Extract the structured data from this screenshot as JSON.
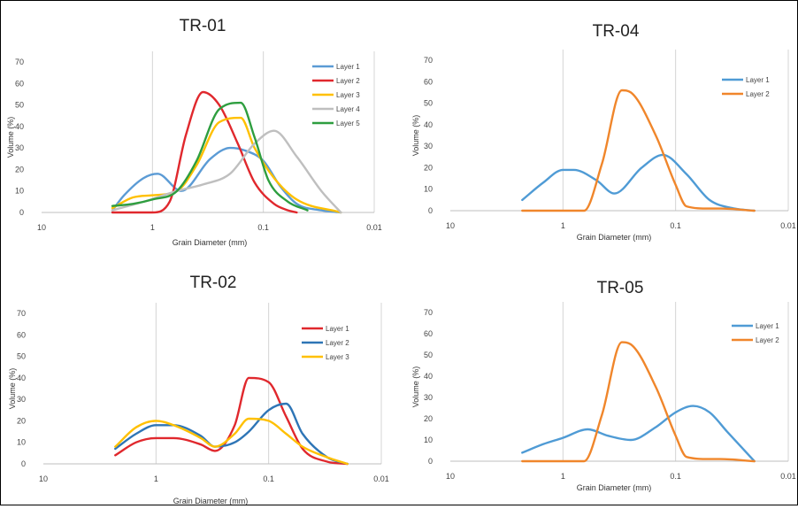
{
  "chart_data": [
    {
      "type": "line",
      "title": "TR-01",
      "xlabel": "Grain Diameter (mm)",
      "ylabel": "Volume (%)",
      "x_scale": "log-reversed",
      "xlim": [
        10,
        0.01
      ],
      "ylim": [
        0,
        70
      ],
      "x_ticks": [
        "10",
        "1",
        "0.1",
        "0.01"
      ],
      "y_ticks": [
        "0",
        "10",
        "20",
        "30",
        "40",
        "50",
        "60",
        "70"
      ],
      "grid": "vertical-at-decades",
      "legend_position": "top-right",
      "colors": [
        "#5b9bd5",
        "#e0282d",
        "#ffc000",
        "#bfbfbf",
        "#2e9e3f"
      ],
      "series": [
        {
          "name": "Layer 1",
          "x": [
            2.3,
            1.8,
            1.2,
            0.9,
            0.55,
            0.3,
            0.2,
            0.15,
            0.1,
            0.07,
            0.05,
            0.03,
            0.02
          ],
          "y": [
            1,
            8,
            16,
            18,
            10,
            25,
            30,
            29,
            24,
            12,
            4,
            1,
            0
          ]
        },
        {
          "name": "Layer 2",
          "x": [
            2.3,
            1.6,
            1.0,
            0.7,
            0.5,
            0.35,
            0.25,
            0.17,
            0.12,
            0.08,
            0.06,
            0.05
          ],
          "y": [
            0,
            0,
            0,
            5,
            36,
            56,
            50,
            32,
            14,
            4,
            1,
            0
          ]
        },
        {
          "name": "Layer 3",
          "x": [
            2.3,
            1.5,
            1.0,
            0.6,
            0.4,
            0.25,
            0.16,
            0.12,
            0.08,
            0.05,
            0.02
          ],
          "y": [
            2,
            7,
            8,
            10,
            22,
            42,
            44,
            30,
            16,
            6,
            0
          ]
        },
        {
          "name": "Layer 4",
          "x": [
            2.3,
            1.2,
            0.6,
            0.35,
            0.2,
            0.12,
            0.08,
            0.05,
            0.03,
            0.02
          ],
          "y": [
            1,
            5,
            10,
            13,
            18,
            32,
            38,
            26,
            10,
            0
          ]
        },
        {
          "name": "Layer 5",
          "x": [
            2.3,
            1.5,
            1.0,
            0.6,
            0.4,
            0.25,
            0.16,
            0.12,
            0.09,
            0.06,
            0.04
          ],
          "y": [
            3,
            4,
            6,
            10,
            24,
            48,
            51,
            35,
            15,
            5,
            1
          ]
        }
      ]
    },
    {
      "type": "line",
      "title": "TR-04",
      "xlabel": "Grain Diameter (mm)",
      "ylabel": "Volume (%)",
      "x_scale": "log-reversed",
      "xlim": [
        10,
        0.01
      ],
      "ylim": [
        0,
        70
      ],
      "x_ticks": [
        "10",
        "1",
        "0.1",
        "0.01"
      ],
      "y_ticks": [
        "0",
        "10",
        "20",
        "30",
        "40",
        "50",
        "60",
        "70"
      ],
      "grid": "vertical-at-decades",
      "legend_position": "top-right",
      "colors": [
        "#4f9bd5",
        "#f0862b"
      ],
      "series": [
        {
          "name": "Layer 1",
          "x": [
            2.3,
            1.5,
            1.0,
            0.8,
            0.5,
            0.35,
            0.2,
            0.13,
            0.08,
            0.05,
            0.03,
            0.02
          ],
          "y": [
            5,
            13,
            19,
            19,
            14,
            8,
            20,
            26,
            17,
            5,
            1,
            0
          ]
        },
        {
          "name": "Layer 2",
          "x": [
            2.3,
            1.2,
            0.65,
            0.45,
            0.3,
            0.25,
            0.15,
            0.1,
            0.08,
            0.05,
            0.04,
            0.02
          ],
          "y": [
            0,
            0,
            0,
            22,
            56,
            55,
            35,
            12,
            2,
            1,
            1,
            0
          ]
        }
      ]
    },
    {
      "type": "line",
      "title": "TR-02",
      "xlabel": "Grain Diameter (mm)",
      "ylabel": "Volume (%)",
      "x_scale": "log-reversed",
      "xlim": [
        10,
        0.01
      ],
      "ylim": [
        0,
        70
      ],
      "x_ticks": [
        "10",
        "1",
        "0.1",
        "0.01"
      ],
      "y_ticks": [
        "0",
        "10",
        "20",
        "30",
        "40",
        "50",
        "60",
        "70"
      ],
      "grid": "vertical-at-decades",
      "legend_position": "top-right",
      "colors": [
        "#e0282d",
        "#2e75b6",
        "#ffc000"
      ],
      "series": [
        {
          "name": "Layer 1",
          "x": [
            2.3,
            1.5,
            1.0,
            0.7,
            0.4,
            0.3,
            0.2,
            0.15,
            0.1,
            0.07,
            0.05,
            0.03,
            0.02
          ],
          "y": [
            4,
            10,
            12,
            12,
            9,
            6,
            18,
            40,
            38,
            22,
            7,
            1,
            0
          ]
        },
        {
          "name": "Layer 2",
          "x": [
            2.3,
            1.5,
            1.0,
            0.7,
            0.4,
            0.3,
            0.2,
            0.15,
            0.1,
            0.07,
            0.05,
            0.03,
            0.02
          ],
          "y": [
            7,
            14,
            18,
            18,
            13,
            8,
            10,
            15,
            25,
            28,
            14,
            3,
            0
          ]
        },
        {
          "name": "Layer 3",
          "x": [
            2.3,
            1.5,
            1.0,
            0.7,
            0.4,
            0.3,
            0.2,
            0.15,
            0.1,
            0.07,
            0.05,
            0.03,
            0.02
          ],
          "y": [
            8,
            17,
            20,
            18,
            12,
            8,
            14,
            21,
            20,
            14,
            8,
            3,
            0
          ]
        }
      ]
    },
    {
      "type": "line",
      "title": "TR-05",
      "xlabel": "Grain Diameter (mm)",
      "ylabel": "Volume (%)",
      "x_scale": "log-reversed",
      "xlim": [
        10,
        0.01
      ],
      "ylim": [
        0,
        70
      ],
      "x_ticks": [
        "10",
        "1",
        "0.1",
        "0.01"
      ],
      "y_ticks": [
        "0",
        "10",
        "20",
        "30",
        "40",
        "50",
        "60",
        "70"
      ],
      "grid": "vertical-at-decades",
      "legend_position": "top-right",
      "colors": [
        "#4f9bd5",
        "#f0862b"
      ],
      "series": [
        {
          "name": "Layer 1",
          "x": [
            2.3,
            1.5,
            1.0,
            0.6,
            0.4,
            0.25,
            0.15,
            0.1,
            0.07,
            0.05,
            0.035,
            0.02
          ],
          "y": [
            4,
            8,
            11,
            15,
            12,
            10,
            16,
            23,
            26,
            23,
            14,
            0
          ]
        },
        {
          "name": "Layer 2",
          "x": [
            2.3,
            1.2,
            0.65,
            0.45,
            0.3,
            0.25,
            0.15,
            0.1,
            0.08,
            0.05,
            0.04,
            0.02
          ],
          "y": [
            0,
            0,
            0,
            22,
            56,
            55,
            35,
            12,
            2,
            1,
            1,
            0
          ]
        }
      ]
    }
  ]
}
